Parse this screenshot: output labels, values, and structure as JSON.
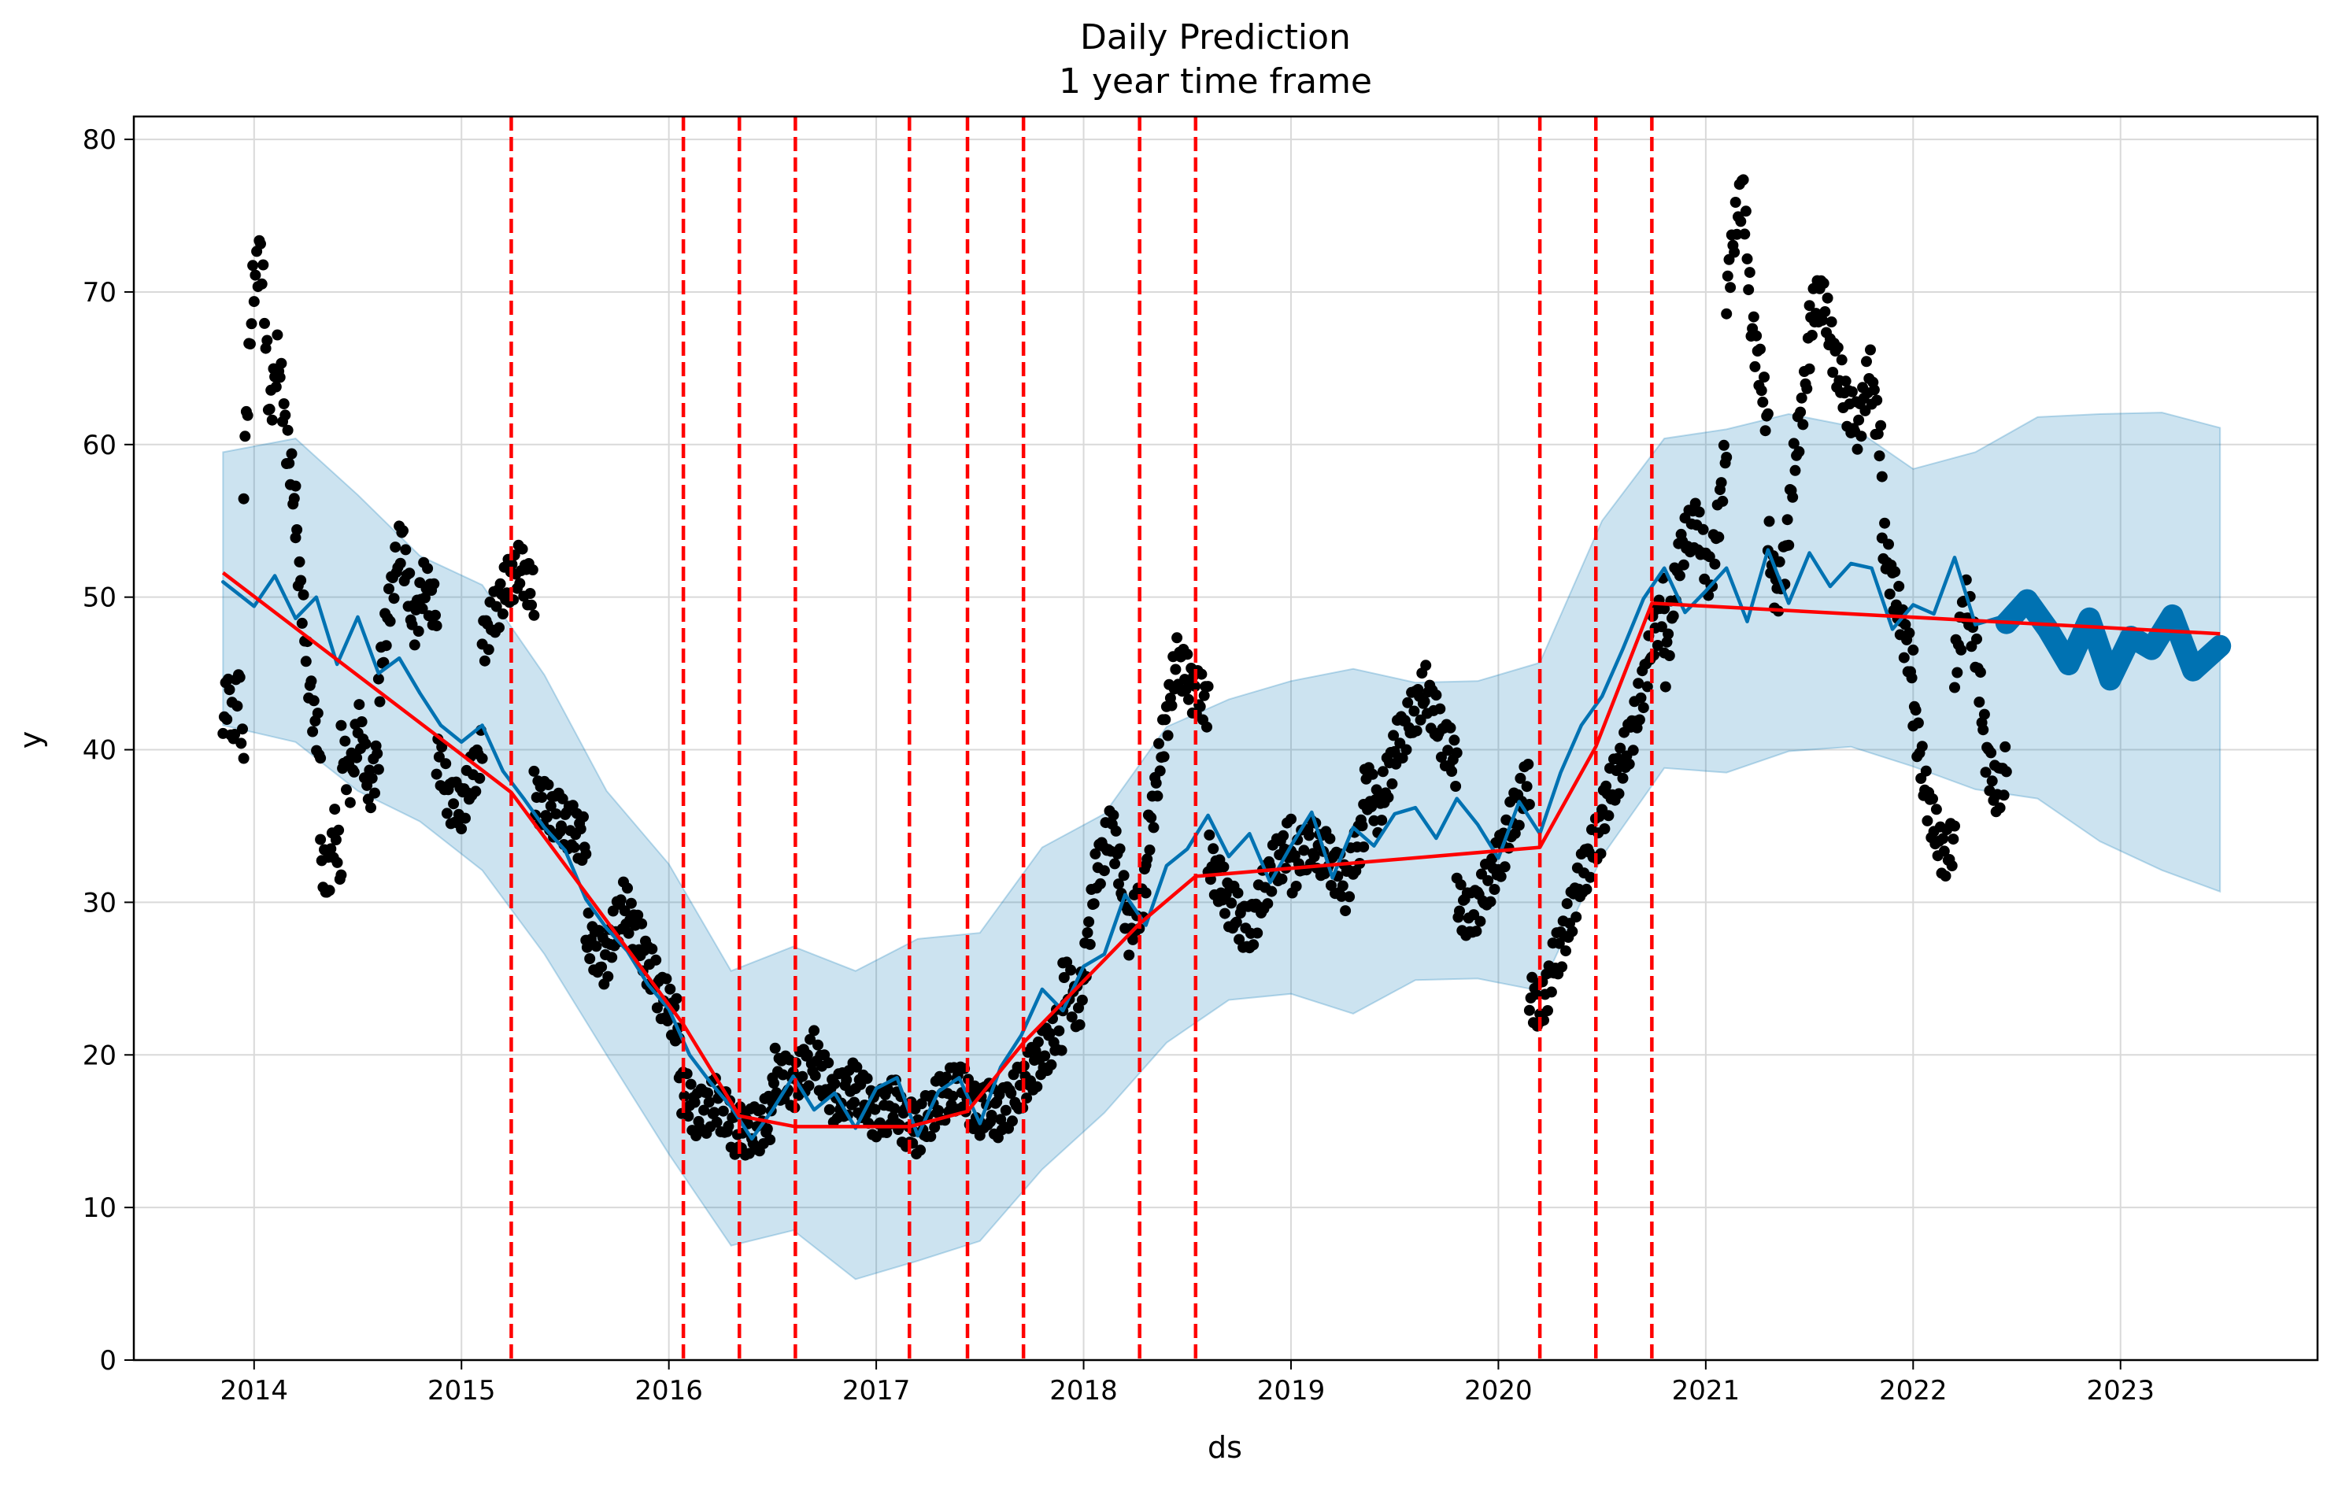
{
  "chart_data": {
    "type": "line",
    "title": "Daily Prediction",
    "subtitle": "1 year time frame",
    "xlabel": "ds",
    "ylabel": "y",
    "xlim": [
      2013.42,
      2023.95
    ],
    "ylim": [
      0,
      81.5
    ],
    "x_ticks": [
      2014,
      2015,
      2016,
      2017,
      2018,
      2019,
      2020,
      2021,
      2022,
      2023
    ],
    "x_tick_labels": [
      "2014",
      "2015",
      "2016",
      "2017",
      "2018",
      "2019",
      "2020",
      "2021",
      "2022",
      "2023"
    ],
    "y_ticks": [
      0,
      10,
      20,
      30,
      40,
      50,
      60,
      70,
      80
    ],
    "y_tick_labels": [
      "0",
      "10",
      "20",
      "30",
      "40",
      "50",
      "60",
      "70",
      "80"
    ],
    "grid": true,
    "legend": "none",
    "colors": {
      "forecast": "#0072B2",
      "interval": "#0072B2",
      "trend": "#ff0000",
      "changepoint": "#ff0000",
      "observed": "#000000",
      "grid": "#d9d9d9"
    },
    "changepoints": [
      2015.24,
      2016.07,
      2016.34,
      2016.61,
      2017.16,
      2017.44,
      2017.71,
      2018.27,
      2018.54,
      2020.2,
      2020.47,
      2020.74
    ],
    "series": [
      {
        "role": "trend",
        "style": "solid-red",
        "x": [
          2013.85,
          2015.24,
          2016.07,
          2016.34,
          2016.61,
          2017.16,
          2017.44,
          2017.71,
          2018.27,
          2018.54,
          2020.2,
          2020.47,
          2020.74,
          2023.48
        ],
        "y": [
          51.6,
          37.2,
          22.0,
          16.0,
          15.3,
          15.3,
          16.3,
          20.8,
          28.6,
          31.7,
          33.6,
          40.2,
          49.6,
          47.6
        ]
      },
      {
        "role": "forecast",
        "style": "solid-blue",
        "x": [
          2013.85,
          2014.0,
          2014.1,
          2014.2,
          2014.3,
          2014.4,
          2014.5,
          2014.6,
          2014.7,
          2014.8,
          2014.9,
          2015.0,
          2015.1,
          2015.2,
          2015.3,
          2015.4,
          2015.5,
          2015.6,
          2015.7,
          2015.8,
          2015.9,
          2016.0,
          2016.1,
          2016.2,
          2016.3,
          2016.4,
          2016.5,
          2016.6,
          2016.7,
          2016.8,
          2016.9,
          2017.0,
          2017.1,
          2017.2,
          2017.3,
          2017.4,
          2017.5,
          2017.6,
          2017.7,
          2017.8,
          2017.9,
          2018.0,
          2018.1,
          2018.2,
          2018.3,
          2018.4,
          2018.5,
          2018.6,
          2018.7,
          2018.8,
          2018.9,
          2019.0,
          2019.1,
          2019.2,
          2019.3,
          2019.4,
          2019.5,
          2019.6,
          2019.7,
          2019.8,
          2019.9,
          2020.0,
          2020.1,
          2020.2,
          2020.3,
          2020.4,
          2020.5,
          2020.6,
          2020.7,
          2020.8,
          2020.9,
          2021.0,
          2021.1,
          2021.2,
          2021.3,
          2021.4,
          2021.5,
          2021.6,
          2021.7,
          2021.8,
          2021.9,
          2022.0,
          2022.1,
          2022.2,
          2022.3,
          2022.45
        ],
        "y": [
          51.0,
          49.4,
          51.4,
          48.6,
          50.0,
          45.6,
          48.7,
          45.0,
          46.0,
          43.7,
          41.6,
          40.5,
          41.6,
          38.6,
          36.8,
          34.9,
          33.4,
          30.2,
          28.3,
          26.8,
          24.6,
          23.0,
          20.0,
          18.2,
          16.6,
          14.5,
          16.4,
          18.6,
          16.4,
          17.5,
          15.2,
          17.8,
          18.5,
          14.7,
          17.6,
          18.5,
          15.5,
          19.2,
          21.3,
          24.3,
          22.9,
          25.8,
          26.6,
          30.5,
          28.5,
          32.4,
          33.5,
          35.7,
          33.0,
          34.5,
          31.3,
          33.7,
          35.9,
          31.6,
          34.9,
          33.7,
          35.8,
          36.2,
          34.2,
          36.8,
          35.1,
          32.9,
          36.6,
          34.5,
          38.5,
          41.6,
          43.5,
          46.6,
          49.9,
          51.9,
          49.0,
          50.4,
          51.9,
          48.4,
          53.1,
          49.6,
          52.9,
          50.7,
          52.2,
          51.9,
          47.9,
          49.5,
          48.9,
          52.6,
          48.2,
          48.8
        ]
      },
      {
        "role": "forecast-future",
        "style": "dense-blue-band",
        "x": [
          2022.45,
          2022.55,
          2022.65,
          2022.75,
          2022.85,
          2022.95,
          2023.05,
          2023.15,
          2023.25,
          2023.35,
          2023.48
        ],
        "y": [
          48.3,
          49.8,
          47.9,
          45.6,
          48.6,
          44.6,
          47.4,
          46.6,
          48.8,
          45.2,
          46.8
        ]
      },
      {
        "role": "interval",
        "style": "light-blue-fill",
        "x": [
          2013.85,
          2014.2,
          2014.5,
          2014.8,
          2015.1,
          2015.4,
          2015.7,
          2016.0,
          2016.3,
          2016.6,
          2016.9,
          2017.2,
          2017.5,
          2017.8,
          2018.1,
          2018.4,
          2018.7,
          2019.0,
          2019.3,
          2019.6,
          2019.9,
          2020.2,
          2020.5,
          2020.8,
          2021.1,
          2021.4,
          2021.7,
          2022.0,
          2022.3,
          2022.6,
          2022.9,
          2023.2,
          2023.48
        ],
        "upper": [
          59.5,
          60.4,
          56.7,
          52.7,
          50.8,
          44.9,
          37.3,
          32.5,
          25.5,
          27.1,
          25.5,
          27.6,
          28.0,
          33.6,
          35.8,
          41.5,
          43.3,
          44.5,
          45.3,
          44.4,
          44.5,
          45.7,
          55.0,
          60.4,
          61.0,
          62.0,
          61.2,
          58.4,
          59.5,
          61.8,
          62.0,
          62.1,
          61.1
        ],
        "lower": [
          41.6,
          40.5,
          37.3,
          35.3,
          32.1,
          26.6,
          20.0,
          13.5,
          7.5,
          8.5,
          5.3,
          6.5,
          7.8,
          12.5,
          16.2,
          20.8,
          23.6,
          24.0,
          22.7,
          24.9,
          25.0,
          24.2,
          33.0,
          38.8,
          38.5,
          39.9,
          40.2,
          38.9,
          37.4,
          36.8,
          34.0,
          32.1,
          30.7
        ]
      }
    ],
    "observed_segments": [
      {
        "x0": 2013.85,
        "x1": 2013.95,
        "y": [
          42,
          44,
          41,
          45,
          39
        ]
      },
      {
        "x0": 2013.95,
        "x1": 2014.2,
        "y": [
          58,
          70,
          73,
          62,
          66,
          60,
          56
        ]
      },
      {
        "x0": 2014.2,
        "x1": 2014.32,
        "y": [
          54,
          50,
          45,
          42,
          40
        ]
      },
      {
        "x0": 2014.32,
        "x1": 2014.42,
        "y": [
          33,
          31,
          35,
          32
        ]
      },
      {
        "x0": 2014.42,
        "x1": 2014.6,
        "y": [
          40,
          38,
          42,
          37,
          40
        ]
      },
      {
        "x0": 2014.6,
        "x1": 2014.88,
        "y": [
          44,
          50,
          54,
          48,
          51,
          49
        ]
      },
      {
        "x0": 2014.88,
        "x1": 2015.1,
        "y": [
          40,
          37,
          36,
          38,
          40
        ]
      },
      {
        "x0": 2015.1,
        "x1": 2015.35,
        "y": [
          47,
          49,
          51,
          52,
          50
        ]
      },
      {
        "x0": 2015.35,
        "x1": 2015.6,
        "y": [
          37,
          36,
          35,
          34
        ]
      },
      {
        "x0": 2015.6,
        "x1": 2016.05,
        "y": [
          28,
          26,
          30,
          27,
          24,
          22
        ]
      },
      {
        "x0": 2016.05,
        "x1": 2016.5,
        "y": [
          18,
          16,
          17,
          15,
          15,
          16
        ]
      },
      {
        "x0": 2016.5,
        "x1": 2017.1,
        "y": [
          19,
          18,
          20,
          17,
          18,
          16,
          17
        ]
      },
      {
        "x0": 2017.1,
        "x1": 2017.5,
        "y": [
          16,
          15,
          17,
          18,
          16
        ]
      },
      {
        "x0": 2017.5,
        "x1": 2017.9,
        "y": [
          17,
          16,
          18,
          20,
          22
        ]
      },
      {
        "x0": 2017.9,
        "x1": 2018.3,
        "y": [
          25,
          23,
          32,
          35,
          28,
          31
        ]
      },
      {
        "x0": 2018.3,
        "x1": 2018.6,
        "y": [
          33,
          40,
          46,
          44,
          43
        ]
      },
      {
        "x0": 2018.6,
        "x1": 2019.0,
        "y": [
          33,
          30,
          28,
          32,
          34
        ]
      },
      {
        "x0": 2019.0,
        "x1": 2019.35,
        "y": [
          32,
          34,
          33,
          31,
          35
        ]
      },
      {
        "x0": 2019.35,
        "x1": 2019.8,
        "y": [
          38,
          36,
          40,
          42,
          44,
          41,
          39
        ]
      },
      {
        "x0": 2019.8,
        "x1": 2020.15,
        "y": [
          30,
          29,
          31,
          33,
          36,
          38
        ]
      },
      {
        "x0": 2020.15,
        "x1": 2020.5,
        "y": [
          24,
          23,
          26,
          28,
          31,
          33,
          35
        ]
      },
      {
        "x0": 2020.5,
        "x1": 2020.8,
        "y": [
          36,
          38,
          40,
          43,
          47,
          50
        ]
      },
      {
        "x0": 2020.8,
        "x1": 2021.1,
        "y": [
          45,
          53,
          55,
          51,
          60
        ]
      },
      {
        "x0": 2021.1,
        "x1": 2021.3,
        "y": [
          70,
          74,
          77,
          68,
          65,
          61
        ]
      },
      {
        "x0": 2021.3,
        "x1": 2021.5,
        "y": [
          54,
          50,
          52,
          58,
          62,
          66
        ]
      },
      {
        "x0": 2021.5,
        "x1": 2021.85,
        "y": [
          68,
          70,
          66,
          63,
          61,
          65,
          59
        ]
      },
      {
        "x0": 2021.85,
        "x1": 2022.0,
        "y": [
          54,
          51,
          48,
          45
        ]
      },
      {
        "x0": 2022.0,
        "x1": 2022.2,
        "y": [
          43,
          38,
          35,
          33,
          34
        ]
      },
      {
        "x0": 2022.2,
        "x1": 2022.45,
        "y": [
          45,
          50,
          47,
          40,
          37,
          39
        ]
      }
    ]
  }
}
